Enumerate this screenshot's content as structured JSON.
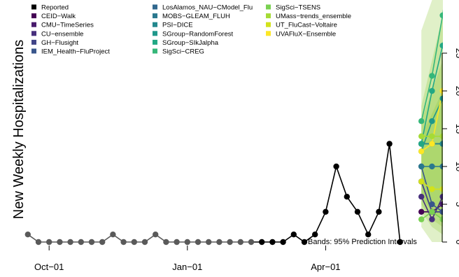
{
  "chart_data": {
    "type": "line",
    "title": "",
    "ylabel": "New Weekly Hospitalizations",
    "xlabel": "",
    "ylim": [
      0,
      28
    ],
    "y_ticks": [
      0,
      5,
      10,
      15,
      20,
      25
    ],
    "x_range_weeks": [
      -1,
      40
    ],
    "x_ticks": [
      {
        "week": 1,
        "label": "Oct−01"
      },
      {
        "week": 14,
        "label": "Jan−01"
      },
      {
        "week": 27,
        "label": "Apr−01"
      }
    ],
    "band_note": "Bands: 95% Prediction Intervals",
    "legend_placement": "top-left",
    "legend": [
      {
        "name": "Reported",
        "color": "#000000"
      },
      {
        "name": "CEID−Walk",
        "color": "#440154"
      },
      {
        "name": "CMU−TimeSeries",
        "color": "#481a6c"
      },
      {
        "name": "CU−ensemble",
        "color": "#472f7d"
      },
      {
        "name": "GH−Flusight",
        "color": "#414487"
      },
      {
        "name": "IEM_Health−FluProject",
        "color": "#39568c"
      },
      {
        "name": "LosAlamos_NAU−CModel_Flu",
        "color": "#31688e"
      },
      {
        "name": "MOBS−GLEAM_FLUH",
        "color": "#2a788e"
      },
      {
        "name": "PSI−DICE",
        "color": "#23888e"
      },
      {
        "name": "SGroup−RandomForest",
        "color": "#1f988b"
      },
      {
        "name": "SGroup−SIkJalpha",
        "color": "#22a884"
      },
      {
        "name": "SigSci−CREG",
        "color": "#35b779"
      },
      {
        "name": "SigSci−TSENS",
        "color": "#7ad151"
      },
      {
        "name": "UMass−trends_ensemble",
        "color": "#a5db36"
      },
      {
        "name": "UT_FluCast−Voltaire",
        "color": "#d2e21b"
      },
      {
        "name": "UVAFluX−Ensemble",
        "color": "#fde725"
      }
    ],
    "reported_previous_season_color": "#5a5a5a",
    "reported": {
      "x": [
        -1,
        0,
        1,
        2,
        3,
        4,
        5,
        6,
        7,
        8,
        9,
        10,
        11,
        12,
        13,
        14,
        15,
        16,
        17,
        18,
        19,
        20,
        21,
        22,
        23,
        24,
        25,
        26,
        27,
        28,
        29,
        30,
        31,
        32,
        33,
        34,
        35,
        36
      ],
      "y": [
        1,
        0,
        0,
        0,
        0,
        0,
        0,
        0,
        1,
        0,
        0,
        0,
        1,
        0,
        0,
        0,
        0,
        0,
        0,
        0,
        0,
        0,
        0,
        0,
        0,
        1,
        0,
        1,
        4,
        10,
        6,
        4,
        1,
        4,
        13,
        0,
        0,
        0
      ],
      "previous_season_through_week": 20,
      "current_season_from_week": 20,
      "reported_last_week": 34
    },
    "forecast": {
      "x": [
        36,
        37,
        38,
        39
      ],
      "series": [
        {
          "name": "CEID−Walk",
          "values": [
            4,
            4,
            4,
            1
          ]
        },
        {
          "name": "CMU−TimeSeries",
          "values": [
            8,
            4,
            5,
            3
          ]
        },
        {
          "name": "CU−ensemble",
          "values": [
            6,
            3,
            6,
            5
          ]
        },
        {
          "name": "GH−Flusight",
          "values": [
            8,
            4,
            4,
            5
          ]
        },
        {
          "name": "IEM_Health−FluProject",
          "values": [
            10,
            5,
            4,
            3
          ]
        },
        {
          "name": "LosAlamos_NAU−CModel_Flu",
          "values": [
            13,
            13,
            13,
            13
          ]
        },
        {
          "name": "MOBS−GLEAM_FLUH",
          "values": [
            10,
            10,
            10,
            10
          ]
        },
        {
          "name": "PSI−DICE",
          "values": [
            13,
            13,
            13,
            13
          ]
        },
        {
          "name": "SGroup−RandomForest",
          "values": [
            12,
            16,
            19,
            17
          ]
        },
        {
          "name": "SGroup−SIkJalpha",
          "values": [
            13,
            20,
            26,
            33
          ]
        },
        {
          "name": "SigSci−CREG",
          "values": [
            16,
            22,
            30,
            40
          ]
        },
        {
          "name": "SigSci−TSENS",
          "values": [
            3,
            4,
            3,
            3
          ]
        },
        {
          "name": "UMass−trends_ensemble",
          "values": [
            14,
            14,
            14,
            13
          ]
        },
        {
          "name": "UT_FluCast−Voltaire",
          "values": [
            8,
            7,
            7,
            6
          ]
        },
        {
          "name": "UVAFluX−Ensemble",
          "values": [
            12,
            13,
            20,
            25
          ]
        }
      ],
      "band_color": "#8fc83a",
      "band_opacity": 0.28
    }
  }
}
